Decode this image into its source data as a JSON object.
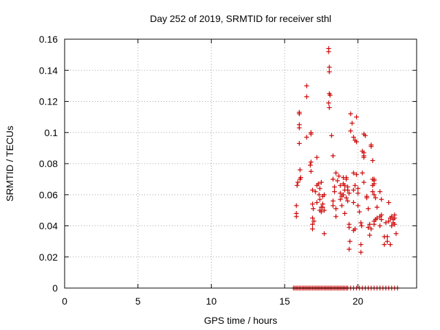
{
  "chart_data": {
    "type": "scatter",
    "title": "Day 252 of 2019, SRMTID for receiver sthl",
    "xlabel": "GPS time / hours",
    "ylabel": "SRMTID / TECUs",
    "xlim": [
      0,
      24
    ],
    "ylim": [
      0,
      0.16
    ],
    "xticks": [
      0,
      5,
      10,
      15,
      20
    ],
    "yticks": [
      0,
      0.02,
      0.04,
      0.06,
      0.08,
      0.1,
      0.12,
      0.14,
      0.16
    ],
    "xtick_labels": [
      "0",
      "5",
      "10",
      "15",
      "20"
    ],
    "ytick_labels": [
      "0",
      "0.02",
      "0.04",
      "0.06",
      "0.08",
      "0.1",
      "0.12",
      "0.14",
      "0.16"
    ],
    "grid": true,
    "marker": "plus",
    "color": "#cc0000",
    "series": [
      {
        "points": [
          [
            15.6,
            0
          ],
          [
            15.7,
            0
          ],
          [
            15.8,
            0
          ],
          [
            15.9,
            0
          ],
          [
            16.0,
            0
          ],
          [
            16.1,
            0
          ],
          [
            16.2,
            0
          ],
          [
            16.3,
            0
          ],
          [
            16.4,
            0
          ],
          [
            16.5,
            0
          ],
          [
            16.6,
            0
          ],
          [
            16.7,
            0
          ],
          [
            16.8,
            0
          ],
          [
            16.9,
            0
          ],
          [
            17.0,
            0
          ],
          [
            17.1,
            0
          ],
          [
            17.2,
            0
          ],
          [
            17.3,
            0
          ],
          [
            17.4,
            0
          ],
          [
            17.5,
            0
          ],
          [
            17.6,
            0
          ],
          [
            17.7,
            0
          ],
          [
            17.8,
            0
          ],
          [
            17.9,
            0
          ],
          [
            18.0,
            0
          ],
          [
            18.1,
            0
          ],
          [
            18.2,
            0
          ],
          [
            18.3,
            0
          ],
          [
            18.4,
            0
          ],
          [
            18.5,
            0
          ],
          [
            18.6,
            0
          ],
          [
            18.7,
            0
          ],
          [
            18.8,
            0
          ],
          [
            18.9,
            0
          ],
          [
            19.0,
            0
          ],
          [
            19.1,
            0
          ],
          [
            19.2,
            0
          ],
          [
            19.3,
            0
          ],
          [
            19.5,
            0
          ],
          [
            19.7,
            0
          ],
          [
            19.9,
            0
          ],
          [
            20.1,
            0
          ],
          [
            20.3,
            0
          ],
          [
            20.5,
            0
          ],
          [
            20.7,
            0
          ],
          [
            20.9,
            0
          ],
          [
            21.1,
            0
          ],
          [
            21.3,
            0
          ],
          [
            21.5,
            0
          ],
          [
            21.7,
            0
          ],
          [
            21.9,
            0
          ],
          [
            22.1,
            0
          ],
          [
            22.3,
            0
          ],
          [
            22.5,
            0
          ],
          [
            22.7,
            0
          ],
          [
            15.8,
            0.053
          ],
          [
            15.8,
            0.048
          ],
          [
            15.8,
            0.046
          ],
          [
            15.85,
            0.066
          ],
          [
            15.9,
            0.068
          ],
          [
            16.0,
            0.113
          ],
          [
            16.0,
            0.112
          ],
          [
            16.0,
            0.105
          ],
          [
            16.0,
            0.103
          ],
          [
            16.0,
            0.093
          ],
          [
            16.05,
            0.076
          ],
          [
            16.1,
            0.071
          ],
          [
            16.05,
            0.07
          ],
          [
            16.5,
            0.13
          ],
          [
            16.5,
            0.123
          ],
          [
            16.5,
            0.097
          ],
          [
            16.8,
            0.1
          ],
          [
            16.8,
            0.099
          ],
          [
            16.8,
            0.081
          ],
          [
            16.75,
            0.079
          ],
          [
            16.8,
            0.075
          ],
          [
            16.9,
            0.063
          ],
          [
            16.9,
            0.054
          ],
          [
            16.95,
            0.051
          ],
          [
            16.9,
            0.045
          ],
          [
            17.0,
            0.043
          ],
          [
            16.9,
            0.041
          ],
          [
            16.9,
            0.038
          ],
          [
            17.2,
            0.084
          ],
          [
            17.3,
            0.067
          ],
          [
            17.2,
            0.066
          ],
          [
            17.1,
            0.062
          ],
          [
            17.4,
            0.064
          ],
          [
            17.35,
            0.06
          ],
          [
            17.2,
            0.055
          ],
          [
            17.5,
            0.068
          ],
          [
            17.4,
            0.057
          ],
          [
            17.5,
            0.052
          ],
          [
            17.4,
            0.05
          ],
          [
            17.5,
            0.049
          ],
          [
            17.6,
            0.059
          ],
          [
            17.7,
            0.06
          ],
          [
            17.6,
            0.054
          ],
          [
            17.6,
            0.052
          ],
          [
            17.7,
            0.05
          ],
          [
            17.7,
            0.035
          ],
          [
            18.0,
            0.154
          ],
          [
            18.0,
            0.152
          ],
          [
            18.05,
            0.142
          ],
          [
            18.05,
            0.139
          ],
          [
            18.05,
            0.125
          ],
          [
            18.1,
            0.124
          ],
          [
            18.0,
            0.119
          ],
          [
            18.05,
            0.116
          ],
          [
            18.2,
            0.098
          ],
          [
            18.3,
            0.085
          ],
          [
            18.3,
            0.07
          ],
          [
            18.4,
            0.065
          ],
          [
            18.4,
            0.062
          ],
          [
            18.3,
            0.056
          ],
          [
            18.3,
            0.053
          ],
          [
            18.5,
            0.074
          ],
          [
            18.7,
            0.072
          ],
          [
            18.6,
            0.069
          ],
          [
            18.5,
            0.051
          ],
          [
            18.5,
            0.046
          ],
          [
            18.8,
            0.066
          ],
          [
            18.8,
            0.061
          ],
          [
            18.9,
            0.059
          ],
          [
            18.8,
            0.057
          ],
          [
            18.9,
            0.053
          ],
          [
            19.0,
            0.071
          ],
          [
            19.0,
            0.067
          ],
          [
            19.1,
            0.066
          ],
          [
            19.1,
            0.063
          ],
          [
            19.0,
            0.06
          ],
          [
            19.1,
            0.048
          ],
          [
            19.2,
            0.071
          ],
          [
            19.2,
            0.07
          ],
          [
            19.3,
            0.065
          ],
          [
            19.3,
            0.063
          ],
          [
            19.2,
            0.058
          ],
          [
            19.3,
            0.056
          ],
          [
            19.4,
            0.061
          ],
          [
            19.4,
            0.041
          ],
          [
            19.4,
            0.039
          ],
          [
            19.45,
            0.03
          ],
          [
            19.4,
            0.025
          ],
          [
            19.5,
            0.112
          ],
          [
            19.5,
            0.101
          ],
          [
            19.6,
            0.106
          ],
          [
            19.7,
            0.097
          ],
          [
            19.8,
            0.095
          ],
          [
            19.9,
            0.11
          ],
          [
            19.9,
            0.094
          ],
          [
            19.7,
            0.074
          ],
          [
            19.9,
            0.073
          ],
          [
            19.8,
            0.066
          ],
          [
            19.7,
            0.063
          ],
          [
            19.7,
            0.055
          ],
          [
            19.8,
            0.038
          ],
          [
            19.7,
            0.037
          ],
          [
            20.0,
            0.064
          ],
          [
            20.0,
            0.061
          ],
          [
            20.0,
            0.053
          ],
          [
            20.1,
            0.049
          ],
          [
            20.2,
            0.042
          ],
          [
            20.25,
            0.04
          ],
          [
            20.2,
            0.028
          ],
          [
            20.2,
            0.023
          ],
          [
            20.4,
            0.099
          ],
          [
            20.5,
            0.098
          ],
          [
            20.3,
            0.088
          ],
          [
            20.4,
            0.087
          ],
          [
            20.4,
            0.085
          ],
          [
            20.4,
            0.084
          ],
          [
            20.3,
            0.074
          ],
          [
            20.4,
            0.068
          ],
          [
            20.6,
            0.059
          ],
          [
            20.6,
            0.058
          ],
          [
            20.7,
            0.051
          ],
          [
            20.8,
            0.041
          ],
          [
            20.7,
            0.039
          ],
          [
            20.9,
            0.038
          ],
          [
            20.8,
            0.034
          ],
          [
            20.9,
            0.092
          ],
          [
            20.9,
            0.091
          ],
          [
            21.0,
            0.082
          ],
          [
            21.0,
            0.07
          ],
          [
            21.1,
            0.07
          ],
          [
            21.1,
            0.069
          ],
          [
            21.1,
            0.067
          ],
          [
            21.0,
            0.066
          ],
          [
            21.0,
            0.062
          ],
          [
            21.1,
            0.06
          ],
          [
            21.2,
            0.058
          ],
          [
            21.3,
            0.052
          ],
          [
            21.3,
            0.045
          ],
          [
            21.2,
            0.044
          ],
          [
            21.1,
            0.043
          ],
          [
            21.1,
            0.041
          ],
          [
            21.5,
            0.062
          ],
          [
            21.6,
            0.057
          ],
          [
            21.6,
            0.047
          ],
          [
            21.5,
            0.046
          ],
          [
            21.6,
            0.044
          ],
          [
            21.5,
            0.04
          ],
          [
            21.8,
            0.033
          ],
          [
            21.8,
            0.028
          ],
          [
            21.9,
            0.042
          ],
          [
            22.0,
            0.033
          ],
          [
            22.0,
            0.03
          ],
          [
            22.1,
            0.043
          ],
          [
            22.1,
            0.055
          ],
          [
            22.2,
            0.028
          ],
          [
            22.2,
            0.045
          ],
          [
            22.3,
            0.046
          ],
          [
            22.3,
            0.04
          ],
          [
            22.4,
            0.044
          ],
          [
            22.4,
            0.042
          ],
          [
            22.5,
            0.047
          ],
          [
            22.5,
            0.045
          ],
          [
            22.5,
            0.041
          ],
          [
            22.6,
            0.035
          ]
        ]
      }
    ]
  }
}
